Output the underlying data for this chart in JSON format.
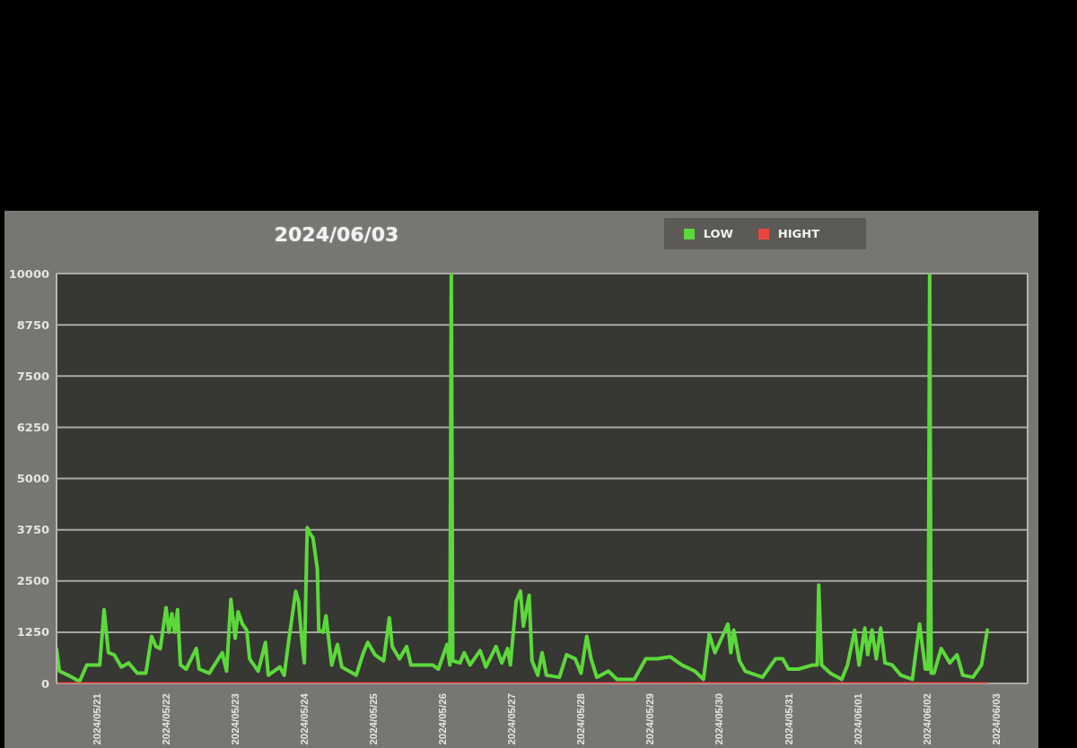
{
  "chart_data": {
    "type": "line",
    "title": "2024/06/03",
    "xlim": [
      "2024-05-20T10:00",
      "2024-06-03T11:00"
    ],
    "xticks": [
      {
        "value": "2024-05-21",
        "label": "2024/05/21"
      },
      {
        "value": "2024-05-22",
        "label": "2024/05/22"
      },
      {
        "value": "2024-05-23",
        "label": "2024/05/23"
      },
      {
        "value": "2024-05-24",
        "label": "2024/05/24"
      },
      {
        "value": "2024-05-25",
        "label": "2024/05/25"
      },
      {
        "value": "2024-05-26",
        "label": "2024/05/26"
      },
      {
        "value": "2024-05-27",
        "label": "2024/05/27"
      },
      {
        "value": "2024-05-28",
        "label": "2024/05/28"
      },
      {
        "value": "2024-05-29",
        "label": "2024/05/29"
      },
      {
        "value": "2024-05-30",
        "label": "2024/05/30"
      },
      {
        "value": "2024-05-31",
        "label": "2024/05/31"
      },
      {
        "value": "2024-06-01",
        "label": "2024/06/01"
      },
      {
        "value": "2024-06-02",
        "label": "2024/06/02"
      },
      {
        "value": "2024-06-03",
        "label": "2024/06/03"
      }
    ],
    "ylim": [
      0,
      10000
    ],
    "yticks": [
      0,
      1250,
      2500,
      3750,
      5000,
      6250,
      7500,
      8750,
      10000
    ],
    "grid": "y",
    "legend": "top right",
    "marker": "none",
    "line_style": "solid",
    "series": [
      {
        "name": "LOW",
        "color": "#5cd93a",
        "x": [
          "2024-05-20T10:00",
          "2024-05-20T11:00",
          "2024-05-20T14:00",
          "2024-05-20T18:00",
          "2024-05-20T20:30",
          "2024-05-21T01:00",
          "2024-05-21T02:30",
          "2024-05-21T04:00",
          "2024-05-21T06:00",
          "2024-05-21T08:30",
          "2024-05-21T11:00",
          "2024-05-21T14:00",
          "2024-05-21T17:00",
          "2024-05-21T19:00",
          "2024-05-21T20:30",
          "2024-05-21T22:00",
          "2024-05-22T00:00",
          "2024-05-22T01:00",
          "2024-05-22T02:00",
          "2024-05-22T03:00",
          "2024-05-22T04:00",
          "2024-05-22T05:00",
          "2024-05-22T07:00",
          "2024-05-22T10:30",
          "2024-05-22T11:30",
          "2024-05-22T15:00",
          "2024-05-22T19:30",
          "2024-05-22T21:00",
          "2024-05-22T22:30",
          "2024-05-23T00:00",
          "2024-05-23T01:00",
          "2024-05-23T02:30",
          "2024-05-23T04:00",
          "2024-05-23T05:00",
          "2024-05-23T08:00",
          "2024-05-23T10:30",
          "2024-05-23T11:30",
          "2024-05-23T15:30",
          "2024-05-23T17:00",
          "2024-05-23T18:30",
          "2024-05-23T21:00",
          "2024-05-23T22:00",
          "2024-05-23T23:00",
          "2024-05-24T00:00",
          "2024-05-24T01:00",
          "2024-05-24T02:00",
          "2024-05-24T03:00",
          "2024-05-24T04:30",
          "2024-05-24T05:00",
          "2024-05-24T06:30",
          "2024-05-24T07:30",
          "2024-05-24T09:30",
          "2024-05-24T11:30",
          "2024-05-24T13:00",
          "2024-05-24T15:30",
          "2024-05-24T18:00",
          "2024-05-24T20:30",
          "2024-05-24T22:00",
          "2024-05-25T00:30",
          "2024-05-25T03:30",
          "2024-05-25T05:30",
          "2024-05-25T06:30",
          "2024-05-25T09:00",
          "2024-05-25T11:30",
          "2024-05-25T13:00",
          "2024-05-25T20:30",
          "2024-05-25T22:30",
          "2024-05-26T01:30",
          "2024-05-26T02:30",
          "2024-05-26T03:00",
          "2024-05-26T03:30",
          "2024-05-26T06:00",
          "2024-05-26T07:30",
          "2024-05-26T09:30",
          "2024-05-26T13:00",
          "2024-05-26T15:00",
          "2024-05-26T18:30",
          "2024-05-26T20:30",
          "2024-05-26T22:30",
          "2024-05-26T23:30",
          "2024-05-27T01:30",
          "2024-05-27T03:00",
          "2024-05-27T04:00",
          "2024-05-27T06:00",
          "2024-05-27T07:00",
          "2024-05-27T09:00",
          "2024-05-27T10:30",
          "2024-05-27T12:00",
          "2024-05-27T16:30",
          "2024-05-27T19:00",
          "2024-05-27T22:00",
          "2024-05-28T00:00",
          "2024-05-28T02:00",
          "2024-05-28T03:30",
          "2024-05-28T05:30",
          "2024-05-28T09:30",
          "2024-05-28T12:30",
          "2024-05-28T18:30",
          "2024-05-28T22:30",
          "2024-05-29T02:30",
          "2024-05-29T07:00",
          "2024-05-29T11:00",
          "2024-05-29T15:30",
          "2024-05-29T18:30",
          "2024-05-29T20:30",
          "2024-05-29T22:30",
          "2024-05-30T03:00",
          "2024-05-30T04:00",
          "2024-05-30T05:00",
          "2024-05-30T07:00",
          "2024-05-30T09:00",
          "2024-05-30T15:00",
          "2024-05-30T19:30",
          "2024-05-30T22:00",
          "2024-05-31T00:00",
          "2024-05-31T03:30",
          "2024-05-31T08:30",
          "2024-05-31T10:00",
          "2024-05-31T10:30",
          "2024-05-31T11:30",
          "2024-05-31T14:30",
          "2024-05-31T18:30",
          "2024-05-31T20:30",
          "2024-05-31T23:00",
          "2024-06-01T00:30",
          "2024-06-01T02:30",
          "2024-06-01T03:30",
          "2024-06-01T05:00",
          "2024-06-01T06:30",
          "2024-06-01T08:00",
          "2024-06-01T09:30",
          "2024-06-01T12:00",
          "2024-06-01T15:00",
          "2024-06-01T19:00",
          "2024-06-01T21:30",
          "2024-06-01T23:30",
          "2024-06-02T00:30",
          "2024-06-02T01:00",
          "2024-06-02T01:30",
          "2024-06-02T02:30",
          "2024-06-02T05:00",
          "2024-06-02T08:00",
          "2024-06-02T10:30",
          "2024-06-02T12:30",
          "2024-06-02T16:00",
          "2024-06-02T19:00",
          "2024-06-02T21:00"
        ],
        "values": [
          850,
          300,
          200,
          50,
          450,
          450,
          1800,
          750,
          700,
          400,
          500,
          250,
          250,
          1150,
          900,
          850,
          1850,
          1250,
          1700,
          1250,
          1800,
          450,
          350,
          850,
          350,
          250,
          750,
          300,
          2050,
          1100,
          1750,
          1450,
          1300,
          600,
          300,
          1000,
          200,
          400,
          200,
          1000,
          2250,
          2000,
          1150,
          500,
          3800,
          3650,
          3550,
          2800,
          1300,
          1250,
          1650,
          450,
          950,
          400,
          300,
          200,
          750,
          1000,
          700,
          550,
          1600,
          900,
          600,
          900,
          450,
          450,
          350,
          950,
          450,
          10000,
          550,
          500,
          750,
          450,
          800,
          400,
          900,
          500,
          850,
          450,
          2000,
          2250,
          1400,
          2150,
          550,
          200,
          750,
          200,
          150,
          700,
          600,
          250,
          1150,
          600,
          150,
          300,
          100,
          100,
          600,
          600,
          650,
          450,
          300,
          100,
          1200,
          750,
          1450,
          750,
          1300,
          550,
          300,
          150,
          600,
          600,
          350,
          350,
          450,
          450,
          2400,
          450,
          250,
          100,
          450,
          1300,
          450,
          1350,
          700,
          1300,
          600,
          1350,
          500,
          450,
          200,
          100,
          1450,
          350,
          350,
          10000,
          250,
          250,
          850,
          500,
          700,
          200,
          150,
          450,
          1300
        ]
      },
      {
        "name": "HIGHT",
        "color": "#e8463c",
        "x": [
          "2024-05-20T10:00",
          "2024-06-02T21:00"
        ],
        "values": [
          0,
          0
        ]
      }
    ]
  }
}
